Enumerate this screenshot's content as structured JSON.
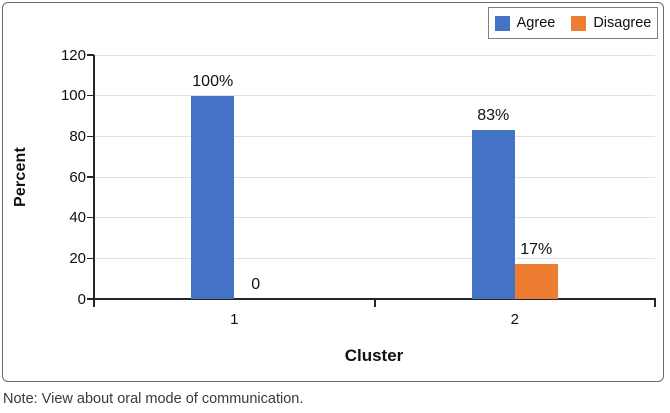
{
  "note": "Note: View about oral mode of communication.",
  "legend": {
    "items": [
      {
        "label": "Agree",
        "color": "#4472C4"
      },
      {
        "label": "Disagree",
        "color": "#ED7D31"
      }
    ]
  },
  "chart_data": {
    "type": "bar",
    "title": "",
    "categories": [
      "1",
      "2"
    ],
    "series": [
      {
        "name": "Agree",
        "color": "#4472C4",
        "values": [
          100,
          83
        ],
        "labels": [
          "100%",
          "83%"
        ]
      },
      {
        "name": "Disagree",
        "color": "#ED7D31",
        "values": [
          0,
          17
        ],
        "labels": [
          "0",
          "17%"
        ]
      }
    ],
    "xlabel": "Cluster",
    "ylabel": "Percent",
    "ylim": [
      0,
      120
    ],
    "yticks": [
      0,
      20,
      40,
      60,
      80,
      100,
      120
    ],
    "grid": true,
    "legend_position": "top-right",
    "colors": {
      "gridline": "#e2e2e2",
      "axis_line": "#262626",
      "frame_border": "#6b6b6b",
      "legend_border": "#7f7f7f",
      "text": "#111111"
    }
  }
}
